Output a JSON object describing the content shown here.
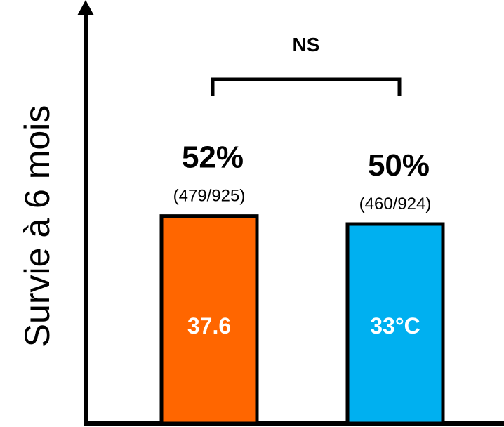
{
  "chart_data": {
    "type": "bar",
    "ylabel": "Survie à 6 mois",
    "categories": [
      "37.6",
      "33°C"
    ],
    "values": [
      52,
      50
    ],
    "value_labels": [
      "52%",
      "50%"
    ],
    "count_labels": [
      "(479/925)",
      "(460/924)"
    ],
    "colors": [
      "#ff6600",
      "#00b0f0"
    ],
    "significance": "NS",
    "grid": false
  }
}
